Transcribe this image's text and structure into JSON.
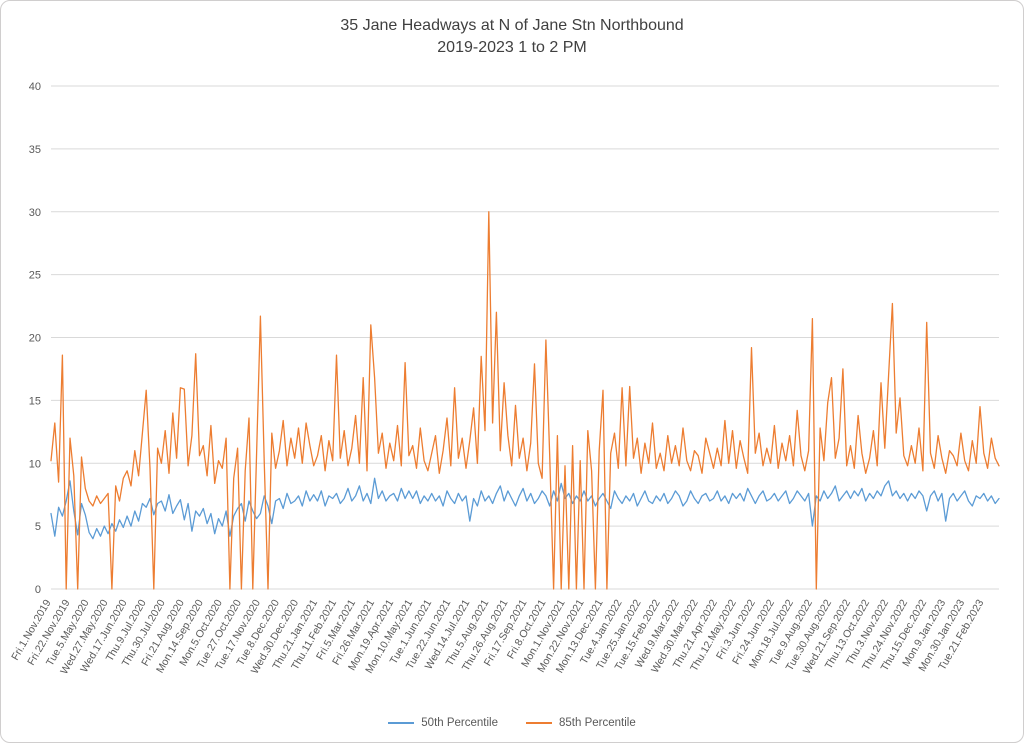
{
  "frame": {
    "background": "#FFFFFF",
    "border_color": "#D0CECE"
  },
  "chart_data": {
    "type": "line",
    "title": "35 Jane Headways at N of Jane Stn Northbound",
    "subtitle": "2019-2023 1 to 2 PM",
    "ylim": [
      0,
      40
    ],
    "yticks": [
      0,
      5,
      10,
      15,
      20,
      25,
      30,
      35,
      40
    ],
    "grid": true,
    "legend_position": "bottom",
    "points_per_label": 5,
    "colors": {
      "gridline": "#D9D9D9",
      "axis_text": "#595959",
      "title_text": "#404040"
    },
    "x_labels": [
      "Fri.1.Nov.2019",
      "Fri.22.Nov.2019",
      "Tue.5.May.2020",
      "Wed.27.May.2020",
      "Wed.17.Jun.2020",
      "Thu.9.Jul.2020",
      "Thu.30.Jul.2020",
      "Fri.21.Aug.2020",
      "Mon.14.Sep.2020",
      "Mon.5.Oct.2020",
      "Tue.27.Oct.2020",
      "Tue.17.Nov.2020",
      "Tue.8.Dec.2020",
      "Wed.30.Dec.2020",
      "Thu.21.Jan.2021",
      "Thu.11.Feb.2021",
      "Fri.5.Mar.2021",
      "Fri.26.Mar.2021",
      "Mon.19.Apr.2021",
      "Mon.10.May.2021",
      "Tue.1.Jun.2021",
      "Tue.22.Jun.2021",
      "Wed.14.Jul.2021",
      "Thu.5.Aug.2021",
      "Thu.26.Aug.2021",
      "Fri.17.Sep.2021",
      "Fri.8.Oct.2021",
      "Mon.1.Nov.2021",
      "Mon.22.Nov.2021",
      "Mon.13.Dec.2021",
      "Tue.4.Jan.2022",
      "Tue.25.Jan.2022",
      "Tue.15.Feb.2022",
      "Wed.9.Mar.2022",
      "Wed.30.Mar.2022",
      "Thu.21.Apr.2022",
      "Thu.12.May.2022",
      "Fri.3.Jun.2022",
      "Fri.24.Jun.2022",
      "Mon.18.Jul.2022",
      "Tue.9.Aug.2022",
      "Tue.30.Aug.2022",
      "Wed.21.Sep.2022",
      "Thu.13.Oct.2022",
      "Thu.3.Nov.2022",
      "Thu.24.Nov.2022",
      "Thu.15.Dec.2022",
      "Mon.9.Jan.2023",
      "Mon.30.Jan.2023",
      "Tue.21.Feb.2023"
    ],
    "series": [
      {
        "name": "50th Percentile",
        "color": "#5B9BD5",
        "values": [
          6,
          4.2,
          6.5,
          5.8,
          7,
          8.6,
          6.2,
          4.3,
          6.8,
          5.9,
          4.5,
          4,
          4.8,
          4.2,
          5,
          4.4,
          5.2,
          4.6,
          5.5,
          4.9,
          5.8,
          5,
          6.2,
          5.4,
          6.8,
          6.5,
          7.2,
          5.9,
          6.8,
          7,
          6.2,
          7.5,
          6,
          6.6,
          7.1,
          5.5,
          6.8,
          4.6,
          6.2,
          5.8,
          6.4,
          5.2,
          6,
          4.4,
          5.6,
          5,
          6.2,
          4.2,
          5.8,
          6.4,
          6.8,
          5.4,
          7,
          6.2,
          5.6,
          6,
          7.4,
          6.6,
          5.2,
          7,
          7.2,
          6.4,
          7.6,
          6.8,
          7,
          7.4,
          6.6,
          7.8,
          7,
          7.5,
          7,
          7.8,
          6.6,
          7.4,
          7.2,
          7.6,
          6.8,
          7.2,
          8,
          7,
          7.4,
          8.2,
          7,
          7.6,
          6.8,
          8.8,
          7.2,
          7.8,
          7,
          7.4,
          7.6,
          7,
          8,
          7.2,
          7.8,
          7.2,
          7.8,
          6.8,
          7.4,
          7,
          7.6,
          7,
          7.4,
          6.6,
          7.8,
          7.2,
          6.8,
          7.6,
          7,
          7.4,
          5.4,
          7.2,
          6.6,
          7.8,
          7,
          7.4,
          6.8,
          7.6,
          8.2,
          7,
          7.8,
          7.2,
          6.6,
          7.4,
          8,
          7,
          7.6,
          6.8,
          7.2,
          7.8,
          7.4,
          6.6,
          7.8,
          7,
          8.4,
          7.2,
          7.6,
          6.8,
          7.4,
          7,
          7.8,
          7,
          7.4,
          6.6,
          7.2,
          7.6,
          7,
          6.4,
          7.8,
          7.2,
          6.8,
          7.4,
          7,
          7.6,
          6.6,
          7.2,
          7.8,
          7,
          6.8,
          7.4,
          7,
          7.6,
          6.8,
          7.2,
          7.8,
          7.4,
          6.6,
          7,
          7.8,
          7.2,
          6.8,
          7.4,
          7.6,
          7,
          7.2,
          7.8,
          7,
          7.4,
          6.8,
          7.6,
          7.2,
          7.6,
          7,
          8,
          7.4,
          6.8,
          7.4,
          7.8,
          7,
          7.2,
          7.6,
          7,
          7.4,
          7.8,
          6.8,
          7.2,
          7.8,
          7.4,
          7,
          7.6,
          5,
          7.4,
          7,
          7.8,
          7.2,
          7.6,
          8.2,
          7,
          7.4,
          7.8,
          7.2,
          7.8,
          7.4,
          8,
          7,
          7.6,
          7.2,
          7.8,
          7.4,
          8.2,
          8.6,
          7.4,
          7.8,
          7.2,
          7.6,
          7,
          7.6,
          7.2,
          7.8,
          7.4,
          6.2,
          7.4,
          7.8,
          7,
          7.6,
          5.4,
          7.2,
          7.6,
          7,
          7.4,
          7.8,
          7,
          6.6,
          7.4,
          7.2,
          7.6,
          7,
          7.4,
          6.8,
          7.2
        ]
      },
      {
        "name": "85th Percentile",
        "color": "#ED7D31",
        "values": [
          10.2,
          13.2,
          8.5,
          18.6,
          0,
          12,
          9,
          0,
          10.5,
          8,
          7,
          6.6,
          7.4,
          6.8,
          7.2,
          7.6,
          0,
          8.2,
          7,
          8.8,
          9.4,
          8.2,
          11,
          9,
          12.4,
          15.8,
          9.6,
          0,
          11.2,
          10,
          12.6,
          9.2,
          14,
          10.4,
          16,
          15.9,
          9.8,
          12.2,
          18.7,
          10.6,
          11.4,
          9,
          13,
          8.4,
          10.2,
          9.6,
          12,
          0,
          8.8,
          11.2,
          0,
          9.4,
          13.6,
          0,
          10.8,
          21.7,
          10.2,
          0,
          12.4,
          9.6,
          11,
          13.4,
          9.8,
          12,
          10.4,
          12.8,
          10,
          13.2,
          11.4,
          9.8,
          10.6,
          12.2,
          9.4,
          11.8,
          10.2,
          18.6,
          10.4,
          12.6,
          9.8,
          11.2,
          13.8,
          10,
          16.8,
          9.4,
          21,
          16.8,
          10.8,
          12.4,
          9.6,
          11.6,
          10.2,
          13,
          9.8,
          18,
          10.6,
          11.4,
          9.6,
          12.8,
          10.2,
          9.4,
          10.8,
          12.2,
          9.2,
          11,
          13.6,
          9.8,
          16,
          10.4,
          12,
          9.6,
          11.8,
          14.4,
          10,
          18.5,
          12.6,
          30,
          13.2,
          22,
          11,
          16.4,
          12.2,
          9.8,
          14.6,
          10.4,
          12,
          9.4,
          11.6,
          17.9,
          10,
          8.8,
          19.8,
          10.6,
          0,
          12.2,
          0,
          9.8,
          0,
          11.4,
          0,
          10.2,
          0,
          12.6,
          9.4,
          0,
          11,
          15.8,
          0,
          10.8,
          12.4,
          9.6,
          16,
          9.8,
          16.1,
          10.4,
          12,
          9.2,
          11.6,
          10,
          13.2,
          9.6,
          10.8,
          9.4,
          12.2,
          10,
          11.4,
          9.8,
          12.8,
          10.2,
          9.4,
          11,
          10.6,
          9.2,
          12,
          10.8,
          9.6,
          11.2,
          9.8,
          13.4,
          10,
          12.6,
          9.6,
          11.8,
          10.4,
          9.2,
          19.2,
          10.8,
          12.4,
          9.8,
          11.2,
          10,
          13,
          9.6,
          11.6,
          10.2,
          12.2,
          9.8,
          14.2,
          10.6,
          9.4,
          11,
          21.5,
          0,
          12.8,
          10.2,
          14.8,
          16.8,
          10.4,
          12,
          17.5,
          9.8,
          11.4,
          9.6,
          13.8,
          10.8,
          9.2,
          10.4,
          12.6,
          9.8,
          16.4,
          11.2,
          17,
          22.7,
          12.4,
          15.2,
          10.6,
          9.8,
          11.4,
          10,
          12.8,
          9.4,
          21.2,
          10.8,
          9.6,
          12.2,
          10.4,
          9.2,
          11,
          10.6,
          9.8,
          12.4,
          10.2,
          9.4,
          11.8,
          10,
          14.5,
          10.8,
          9.6,
          12,
          10.4,
          9.8
        ]
      }
    ]
  }
}
